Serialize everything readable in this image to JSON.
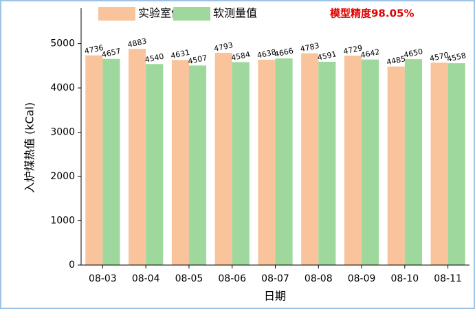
{
  "chart_data": {
    "type": "bar",
    "legend_title_note": "模型精度98.05%",
    "xlabel": "日期",
    "ylabel": "入炉煤热值 (kCal)",
    "categories": [
      "08-03",
      "08-04",
      "08-05",
      "08-06",
      "08-07",
      "08-08",
      "08-09",
      "08-10",
      "08-11"
    ],
    "series": [
      {
        "name": "实验室值",
        "color": "#f9c49b",
        "values": [
          4736,
          4883,
          4631,
          4793,
          4638,
          4783,
          4729,
          4485,
          4570
        ]
      },
      {
        "name": "软测量值",
        "color": "#9fd89d",
        "values": [
          4657,
          4540,
          4507,
          4584,
          4666,
          4591,
          4642,
          4650,
          4558
        ]
      }
    ],
    "ylim": [
      0,
      5800
    ],
    "yticks": [
      0,
      1000,
      2000,
      3000,
      4000,
      5000
    ]
  }
}
